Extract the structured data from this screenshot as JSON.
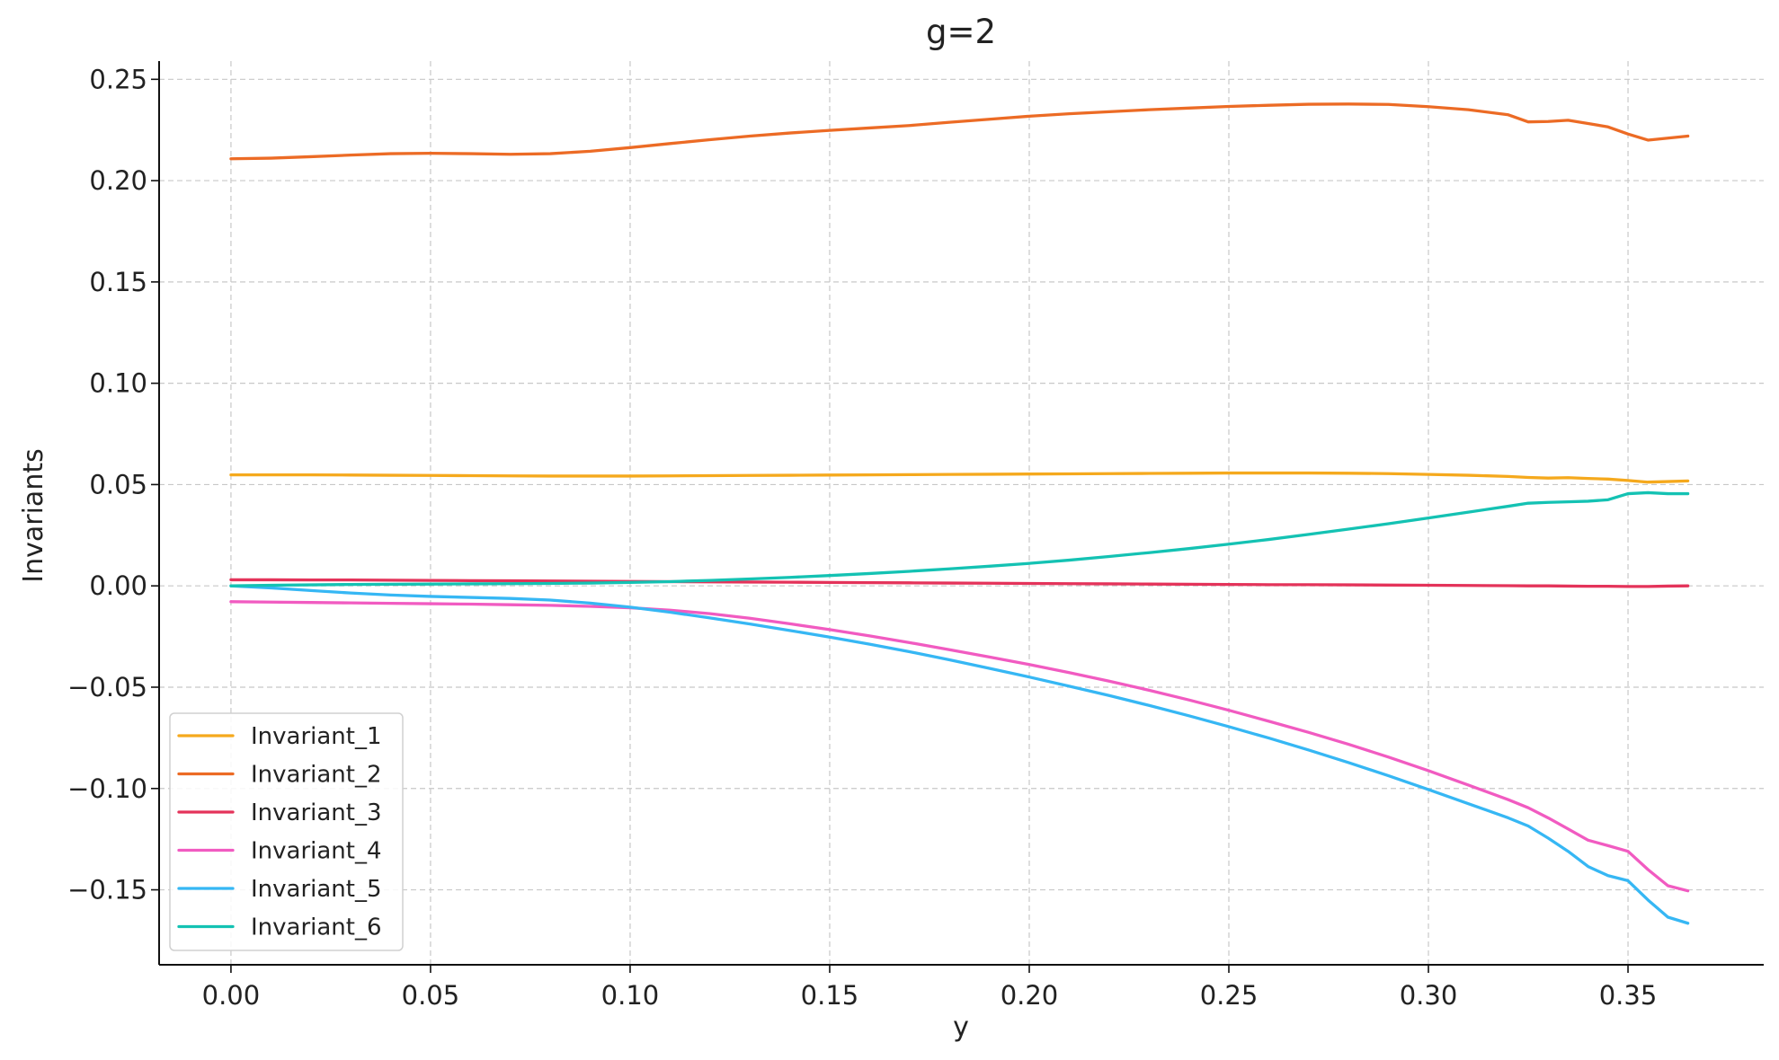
{
  "chart_data": {
    "type": "line",
    "title": "g=2",
    "xlabel": "y",
    "ylabel": "Invariants",
    "xlim": [
      -0.018,
      0.384
    ],
    "ylim": [
      -0.187,
      0.259
    ],
    "xticks": [
      0.0,
      0.05,
      0.1,
      0.15,
      0.2,
      0.25,
      0.3,
      0.35
    ],
    "xtick_labels": [
      "0.00",
      "0.05",
      "0.10",
      "0.15",
      "0.20",
      "0.25",
      "0.30",
      "0.35"
    ],
    "yticks": [
      -0.15,
      -0.1,
      -0.05,
      0.0,
      0.05,
      0.1,
      0.15,
      0.2,
      0.25
    ],
    "ytick_labels": [
      "−0.15",
      "−0.10",
      "−0.05",
      "0.00",
      "0.05",
      "0.10",
      "0.15",
      "0.20",
      "0.25"
    ],
    "grid": true,
    "legend_position": "lower-left",
    "x": [
      0.0,
      0.01,
      0.02,
      0.03,
      0.04,
      0.05,
      0.06,
      0.07,
      0.08,
      0.09,
      0.1,
      0.11,
      0.12,
      0.13,
      0.14,
      0.15,
      0.16,
      0.17,
      0.18,
      0.19,
      0.2,
      0.21,
      0.22,
      0.23,
      0.24,
      0.25,
      0.26,
      0.27,
      0.28,
      0.29,
      0.3,
      0.31,
      0.32,
      0.325,
      0.33,
      0.335,
      0.34,
      0.345,
      0.35,
      0.355,
      0.36,
      0.365
    ],
    "series": [
      {
        "name": "Invariant_1",
        "color": "#F5A91D",
        "values": [
          0.0548,
          0.0548,
          0.0548,
          0.0547,
          0.0546,
          0.0545,
          0.0544,
          0.0543,
          0.0542,
          0.0542,
          0.0542,
          0.0543,
          0.0544,
          0.0545,
          0.0546,
          0.0547,
          0.0548,
          0.0549,
          0.055,
          0.0551,
          0.0552,
          0.0553,
          0.0554,
          0.0555,
          0.0556,
          0.0557,
          0.0557,
          0.0557,
          0.0556,
          0.0554,
          0.055,
          0.0546,
          0.054,
          0.0535,
          0.0532,
          0.0534,
          0.053,
          0.0527,
          0.052,
          0.0512,
          0.0515,
          0.0518
        ]
      },
      {
        "name": "Invariant_2",
        "color": "#EC6B25",
        "values": [
          0.2108,
          0.2111,
          0.2118,
          0.2126,
          0.2133,
          0.2135,
          0.2133,
          0.213,
          0.2133,
          0.2145,
          0.2163,
          0.2183,
          0.2202,
          0.222,
          0.2235,
          0.2248,
          0.226,
          0.2272,
          0.2288,
          0.2303,
          0.2318,
          0.233,
          0.234,
          0.235,
          0.2358,
          0.2366,
          0.2372,
          0.2377,
          0.2378,
          0.2376,
          0.2365,
          0.235,
          0.2325,
          0.229,
          0.2292,
          0.2298,
          0.2282,
          0.2265,
          0.223,
          0.22,
          0.221,
          0.222
        ]
      },
      {
        "name": "Invariant_3",
        "color": "#E4335A",
        "values": [
          0.003,
          0.003,
          0.0029,
          0.0029,
          0.0028,
          0.0027,
          0.0026,
          0.0025,
          0.0024,
          0.0023,
          0.0022,
          0.0021,
          0.002,
          0.0019,
          0.0018,
          0.0017,
          0.0016,
          0.0015,
          0.0014,
          0.0013,
          0.0012,
          0.0011,
          0.001,
          0.0009,
          0.0008,
          0.0007,
          0.0006,
          0.0006,
          0.0005,
          0.0004,
          0.0003,
          0.0002,
          0.0001,
          0.0,
          0.0,
          -0.0001,
          -0.0002,
          -0.0002,
          -0.0003,
          -0.0003,
          -0.0001,
          0.0
        ]
      },
      {
        "name": "Invariant_4",
        "color": "#F15BC1",
        "values": [
          -0.0078,
          -0.008,
          -0.0082,
          -0.0084,
          -0.0086,
          -0.0088,
          -0.009,
          -0.0093,
          -0.0096,
          -0.0101,
          -0.0108,
          -0.012,
          -0.0137,
          -0.016,
          -0.0187,
          -0.0216,
          -0.0247,
          -0.028,
          -0.0315,
          -0.0351,
          -0.0388,
          -0.0428,
          -0.047,
          -0.0515,
          -0.0563,
          -0.0614,
          -0.0668,
          -0.0723,
          -0.0782,
          -0.0845,
          -0.0912,
          -0.0983,
          -0.1055,
          -0.1095,
          -0.1145,
          -0.12,
          -0.1255,
          -0.1282,
          -0.131,
          -0.14,
          -0.148,
          -0.1505
        ]
      },
      {
        "name": "Invariant_5",
        "color": "#36B7F4",
        "values": [
          0.0,
          -0.001,
          -0.0023,
          -0.0035,
          -0.0045,
          -0.0052,
          -0.0057,
          -0.0062,
          -0.007,
          -0.0085,
          -0.0105,
          -0.013,
          -0.0158,
          -0.0188,
          -0.022,
          -0.0253,
          -0.0288,
          -0.0325,
          -0.0365,
          -0.0407,
          -0.045,
          -0.0495,
          -0.0541,
          -0.059,
          -0.0641,
          -0.0695,
          -0.0751,
          -0.081,
          -0.0872,
          -0.0937,
          -0.1005,
          -0.1075,
          -0.1145,
          -0.1185,
          -0.1245,
          -0.131,
          -0.1385,
          -0.143,
          -0.1455,
          -0.155,
          -0.1635,
          -0.1665
        ]
      },
      {
        "name": "Invariant_6",
        "color": "#14C2B3",
        "values": [
          0.0,
          0.0003,
          0.0005,
          0.0007,
          0.0008,
          0.0009,
          0.001,
          0.0011,
          0.0012,
          0.0014,
          0.0017,
          0.0021,
          0.0027,
          0.0034,
          0.0042,
          0.0051,
          0.0061,
          0.0072,
          0.0084,
          0.0097,
          0.0111,
          0.0127,
          0.0145,
          0.0164,
          0.0184,
          0.0206,
          0.0229,
          0.0254,
          0.028,
          0.0307,
          0.0335,
          0.0364,
          0.0393,
          0.0408,
          0.0412,
          0.0415,
          0.0418,
          0.0425,
          0.0455,
          0.046,
          0.0455,
          0.0455
        ]
      }
    ]
  }
}
